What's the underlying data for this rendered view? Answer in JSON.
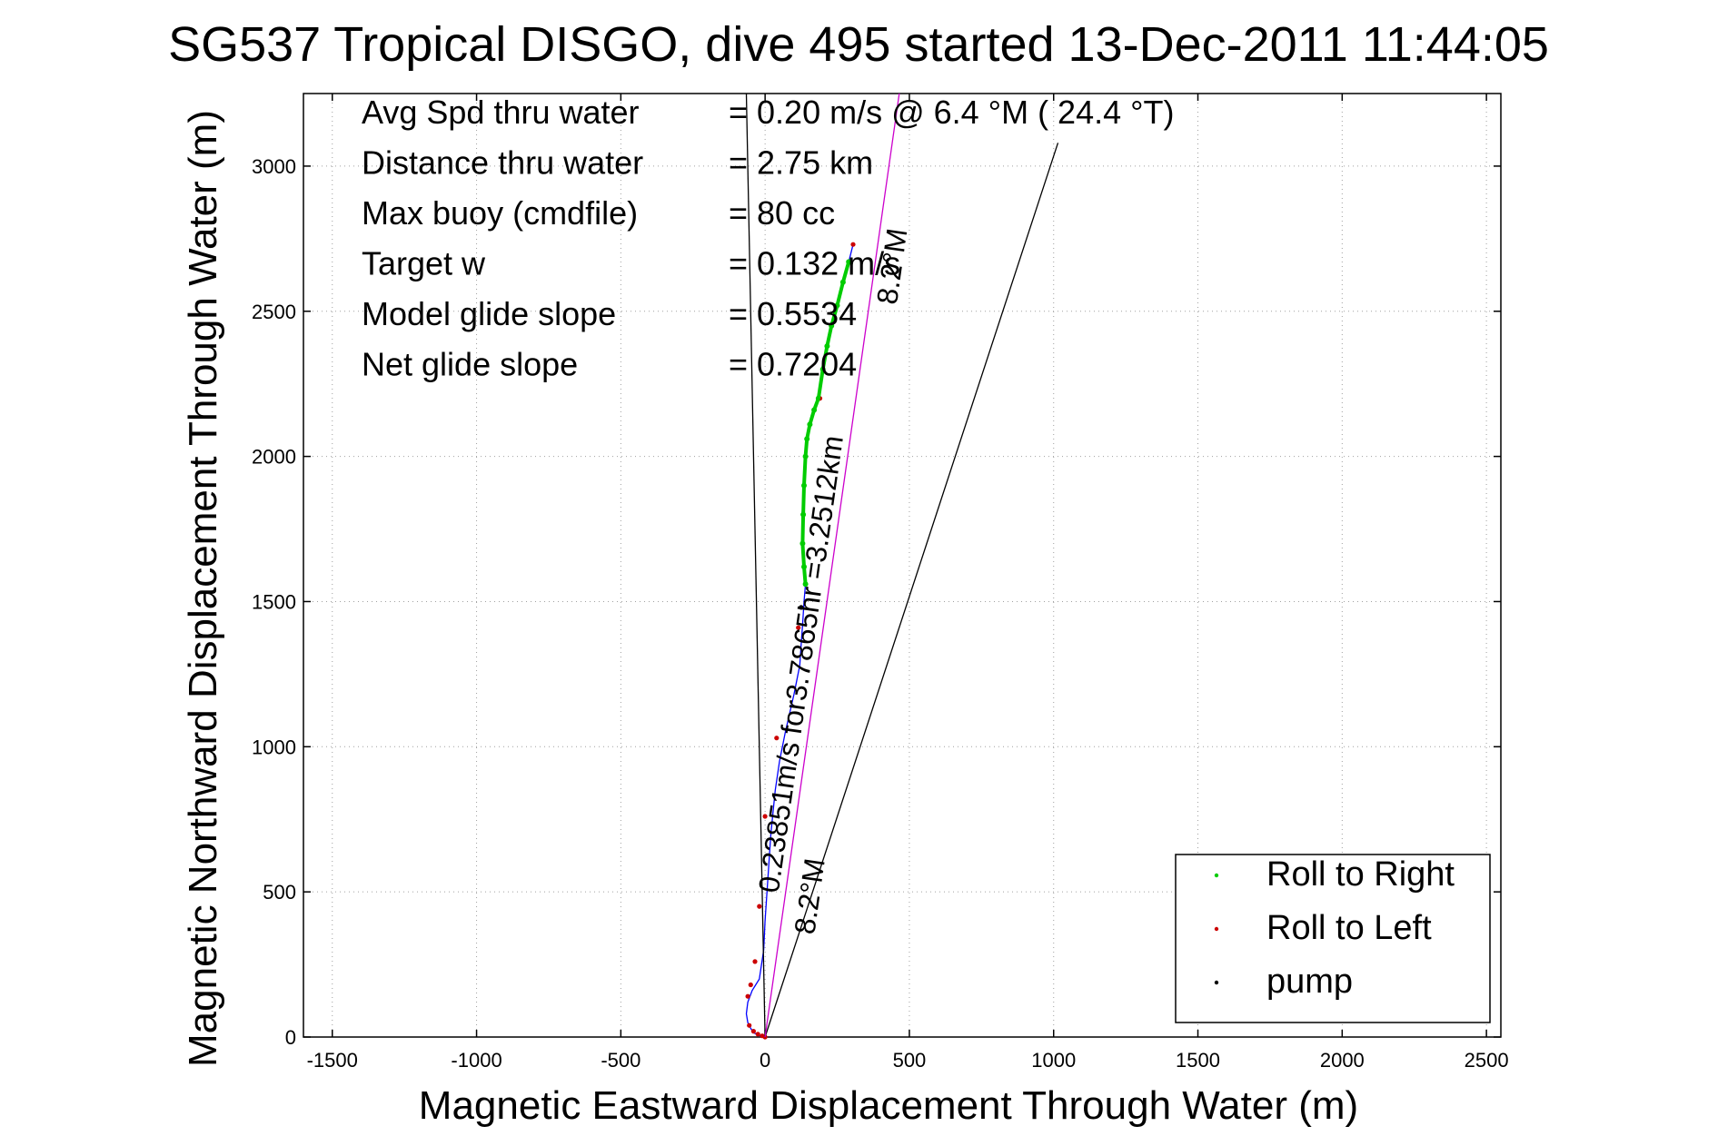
{
  "chart_data": {
    "type": "line",
    "title": "SG537 Tropical DISGO, dive 495 started 13-Dec-2011 11:44:05",
    "xlabel": "Magnetic Eastward Displacement Through Water (m)",
    "ylabel": "Magnetic Northward Displacement Through Water (m)",
    "xlim": [
      -1600,
      2550
    ],
    "ylim": [
      0,
      3250
    ],
    "xticks": [
      -1500,
      -1000,
      -500,
      0,
      500,
      1000,
      1500,
      2000,
      2500
    ],
    "yticks": [
      0,
      500,
      1000,
      1500,
      2000,
      2500,
      3000
    ],
    "xtick_labels": [
      "-1500",
      "-1000",
      "-500",
      "0",
      "500",
      "1000",
      "1500",
      "2000",
      "2500"
    ],
    "ytick_labels": [
      "0",
      "500",
      "1000",
      "1500",
      "2000",
      "2500",
      "3000"
    ],
    "grid": true,
    "legend_position": "bottom-right",
    "legend": [
      {
        "label": "Roll to Right",
        "color": "#00cc00"
      },
      {
        "label": "Roll to Left",
        "color": "#cc0000"
      },
      {
        "label": "pump",
        "color": "#000000"
      }
    ],
    "stats": [
      {
        "label": "Avg Spd thru water",
        "value": "=  0.20 m/s @   6.4 °M ( 24.4 °T)"
      },
      {
        "label": "Distance thru water",
        "value": "=  2.75 km"
      },
      {
        "label": "Max buoy (cmdfile)",
        "value": "= 80 cc"
      },
      {
        "label": "Target w",
        "value": "= 0.132 m/s"
      },
      {
        "label": "Model glide slope",
        "value": "= 0.5534"
      },
      {
        "label": "Net glide slope",
        "value": "= 0.7204"
      }
    ],
    "annotations": {
      "course_label": "0.23851m/s for3.7865hr =3.2512km",
      "heading_label": "8.2°M",
      "heading_label_top": "8.2°M"
    },
    "series": [
      {
        "kind": "track",
        "color": "#0000ff",
        "x": [
          0,
          -20,
          -40,
          -50,
          -60,
          -65,
          -60,
          -45,
          -20,
          -5,
          0,
          10,
          20,
          35,
          50,
          70,
          100,
          120,
          125,
          130,
          135,
          140,
          135,
          130,
          128,
          135,
          140,
          145,
          150,
          160,
          175,
          185,
          190,
          200,
          215,
          230,
          250,
          270,
          290,
          305
        ],
        "y": [
          0,
          5,
          15,
          30,
          50,
          80,
          120,
          160,
          200,
          300,
          400,
          550,
          700,
          850,
          950,
          1050,
          1180,
          1280,
          1350,
          1420,
          1500,
          1560,
          1620,
          1700,
          1800,
          1900,
          2000,
          2060,
          2100,
          2140,
          2180,
          2200,
          2250,
          2300,
          2380,
          2450,
          2520,
          2600,
          2670,
          2730
        ]
      },
      {
        "kind": "roll_right",
        "color": "#00cc00",
        "x": [
          140,
          135,
          130,
          132,
          135,
          140,
          145,
          155,
          170,
          185,
          200,
          215,
          230,
          250,
          270,
          290
        ],
        "y": [
          1560,
          1620,
          1700,
          1800,
          1900,
          2000,
          2060,
          2110,
          2160,
          2200,
          2300,
          2380,
          2450,
          2520,
          2600,
          2670
        ]
      },
      {
        "kind": "roll_left",
        "color": "#cc0000",
        "x": [
          0,
          -10,
          -25,
          -40,
          -55,
          -60,
          -50,
          -35,
          -20,
          0,
          40,
          115,
          190,
          305
        ],
        "y": [
          0,
          4,
          10,
          20,
          40,
          140,
          180,
          260,
          450,
          760,
          1030,
          1410,
          2200,
          2730
        ]
      },
      {
        "kind": "pump",
        "color": "#000000",
        "x": [
          125
        ],
        "y": [
          1480
        ]
      },
      {
        "kind": "ray",
        "color": "#000000",
        "x": [
          0,
          -65
        ],
        "y": [
          0,
          3250
        ]
      },
      {
        "kind": "ray",
        "color": "#000000",
        "x": [
          0,
          1015
        ],
        "y": [
          0,
          3080
        ]
      },
      {
        "kind": "course",
        "color": "#cc00cc",
        "x": [
          0,
          465
        ],
        "y": [
          0,
          3250
        ]
      }
    ]
  }
}
